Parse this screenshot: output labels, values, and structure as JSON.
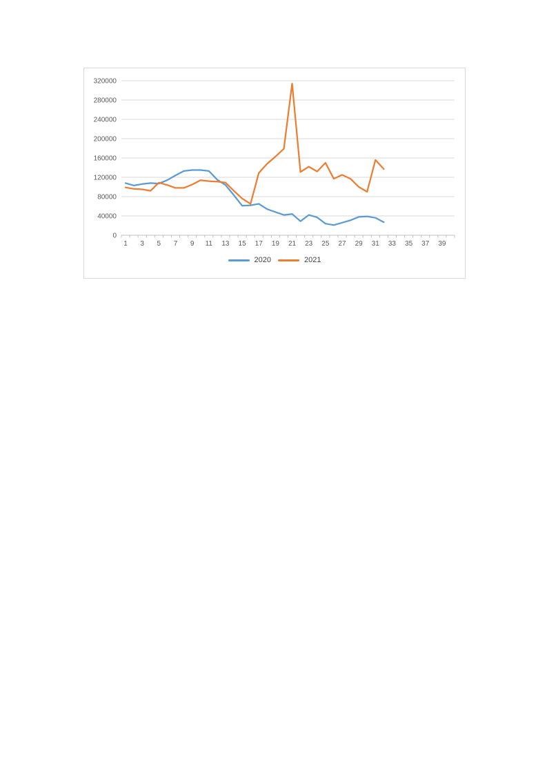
{
  "chart": {
    "background": "#ffffff",
    "border_color": "#d9d9d9",
    "gridline_color": "#d9d9d9",
    "axis_line_color": "#bfbfbf",
    "tick_label_color": "#595959",
    "legend_text_color": "#404040"
  },
  "chart_data": {
    "type": "line",
    "title": "",
    "xlabel": "",
    "ylabel": "",
    "grid": true,
    "legend_position": "bottom",
    "ylim": [
      0,
      320000
    ],
    "y_ticks": [
      0,
      40000,
      80000,
      120000,
      160000,
      200000,
      240000,
      280000,
      320000
    ],
    "y_tick_labels": [
      "0",
      "40000",
      "80000",
      "120000",
      "160000",
      "200000",
      "240000",
      "280000",
      "320000"
    ],
    "x_categories_total": 40,
    "x_tick_labels": [
      "1",
      "3",
      "5",
      "7",
      "9",
      "11",
      "13",
      "15",
      "17",
      "19",
      "21",
      "23",
      "25",
      "27",
      "29",
      "31",
      "33",
      "35",
      "37",
      "39"
    ],
    "x": [
      1,
      2,
      3,
      4,
      5,
      6,
      7,
      8,
      9,
      10,
      11,
      12,
      13,
      14,
      15,
      16,
      17,
      18,
      19,
      20,
      21,
      22,
      23,
      24,
      25,
      26,
      27,
      28,
      29,
      30,
      31,
      32
    ],
    "series": [
      {
        "name": "2020",
        "color": "#5b9bd5",
        "values": [
          108000,
          103000,
          106000,
          108000,
          107000,
          114000,
          124000,
          133000,
          135000,
          135000,
          133000,
          115000,
          104000,
          83000,
          61000,
          62000,
          65000,
          54000,
          48000,
          42000,
          44000,
          29000,
          42000,
          37000,
          24000,
          21000,
          26000,
          31000,
          38000,
          39000,
          36000,
          27000
        ]
      },
      {
        "name": "2021",
        "color": "#ed7d31",
        "values": [
          99000,
          96000,
          95000,
          92000,
          109000,
          104000,
          98000,
          98000,
          105000,
          114000,
          112000,
          111000,
          109000,
          92000,
          76000,
          65000,
          129000,
          148000,
          163000,
          179000,
          314000,
          131000,
          142000,
          132000,
          150000,
          117000,
          125000,
          117000,
          100000,
          90000,
          156000,
          137000
        ]
      }
    ]
  }
}
